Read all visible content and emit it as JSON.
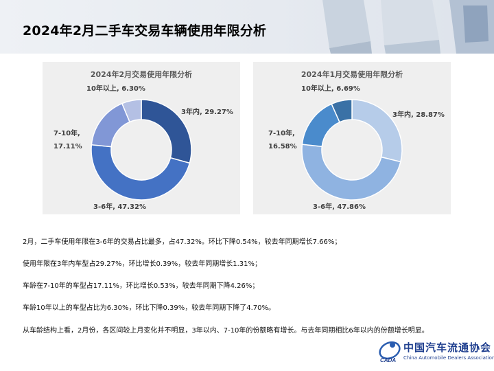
{
  "page": {
    "title": "2024年2月二手车交易车辆使用年限分析"
  },
  "charts": [
    {
      "title": "2024年2月交易使用年限分析",
      "labels": [
        "3年内, 29.27%",
        "3-6年, 47.32%",
        "7-10年,",
        "17.11%",
        "10年以上, 6.30%"
      ]
    },
    {
      "title": "2024年1月交易使用年限分析",
      "labels": [
        "3年内, 28.87%",
        "3-6年, 47.86%",
        "7-10年,",
        "16.58%",
        "10年以上, 6.69%"
      ]
    }
  ],
  "chart_data": [
    {
      "type": "pie",
      "title": "2024年2月交易使用年限分析",
      "categories": [
        "3年内",
        "3-6年",
        "7-10年",
        "10年以上"
      ],
      "values": [
        29.27,
        47.32,
        17.11,
        6.3
      ],
      "colors": [
        "#2f5597",
        "#4472c4",
        "#8197d6",
        "#b4c0e4"
      ]
    },
    {
      "type": "pie",
      "title": "2024年1月交易使用年限分析",
      "categories": [
        "3年内",
        "3-6年",
        "7-10年",
        "10年以上"
      ],
      "values": [
        28.87,
        47.86,
        16.58,
        6.69
      ],
      "colors": [
        "#b6cce9",
        "#8fb3e1",
        "#4a8bcc",
        "#3a71a6"
      ]
    }
  ],
  "notes": [
    "2月，二手车使用年限在3-6年的交易占比最多，占47.32%。环比下降0.54%，较去年同期增长7.66%；",
    "使用年限在3年内车型占29.27%，环比增长0.39%，较去年同期增长1.31%；",
    "车龄在7-10年的车型占17.11%，环比增长0.53%，较去年同期下降4.26%；",
    "车龄10年以上的车型占比为6.30%，环比下降0.39%，较去年同期下降了4.70%。",
    "从车龄结构上看，2月份，各区间较上月变化并不明显，3年以内、7-10年的份额略有增长。与去年同期相比6年以内的份额增长明显。"
  ],
  "logo": {
    "name_cn": "中国汽车流通协会",
    "name_en": "China Automobile Dealers Association",
    "mark_text": "CADA"
  }
}
